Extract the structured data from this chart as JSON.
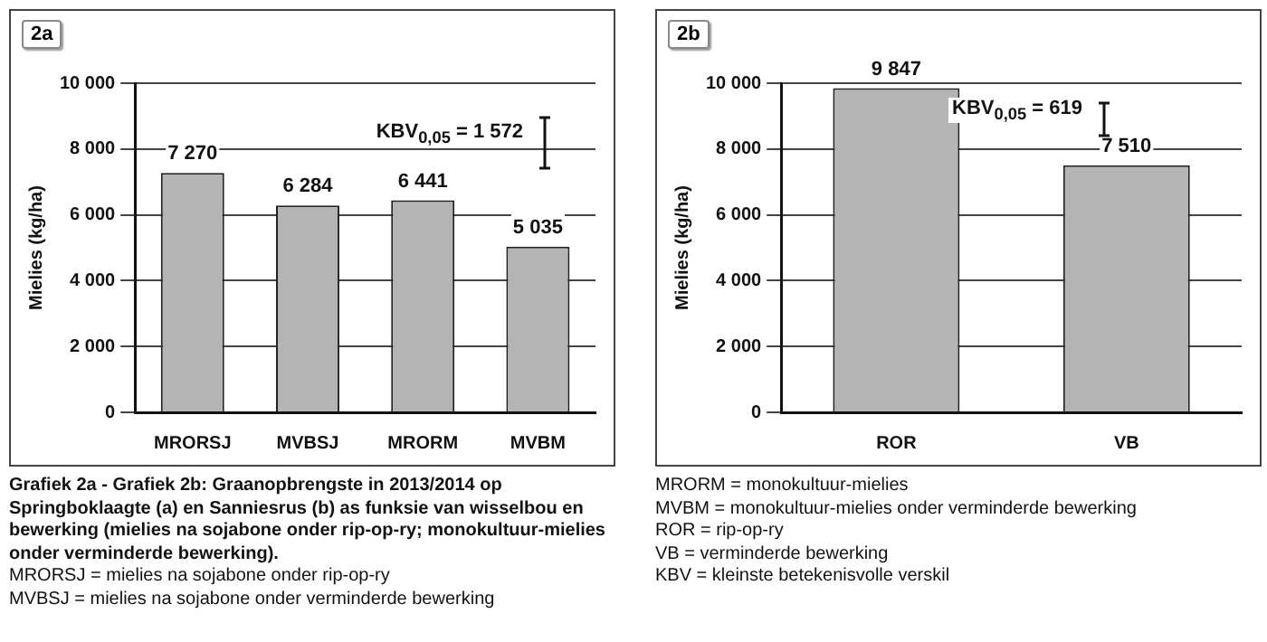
{
  "chart_data": [
    {
      "type": "bar",
      "title": "2a",
      "ylabel": "Mielies (kg/ha)",
      "categories": [
        "MRORSJ",
        "MVBSJ",
        "MRORM",
        "MVBM"
      ],
      "values": [
        7270,
        6284,
        6441,
        5035
      ],
      "value_labels": [
        "7 270",
        "6 284",
        "6 441",
        "5 035"
      ],
      "color": "#b4b4b4",
      "ylim": [
        0,
        10000
      ],
      "yticks": [
        {
          "value": 0,
          "label": "0"
        },
        {
          "value": 2000,
          "label": "2 000"
        },
        {
          "value": 4000,
          "label": "4 000"
        },
        {
          "value": 6000,
          "label": "6 000"
        },
        {
          "value": 8000,
          "label": "8 000"
        },
        {
          "value": 10000,
          "label": "10 000"
        }
      ],
      "grid": "y",
      "annotations": [
        "KBV$_{0,05}$ = 1 572",
        "Grafiek 2a - Grafiek 2b: Graanopbrengste in 2013/2014 op Springboklaagte (a) en Sanniesrus (b) as funksie van wisselbou en bewerking (mielies na sojabone onder rip-op-ry; monokultuur-mielies onder verminderde bewerking).",
        "MRORSJ = mielies na sojabone onder rip-op-ry",
        "MVBSJ = mielies na sojabone onder verminderde bewerking"
      ]
    },
    {
      "type": "bar",
      "title": "2b",
      "ylabel": "Mielies (kg/ha)",
      "categories": [
        "ROR",
        "VB"
      ],
      "values": [
        9847,
        7510
      ],
      "value_labels": [
        "9 847",
        "7 510"
      ],
      "color": "#b4b4b4",
      "ylim": [
        0,
        10000
      ],
      "yticks": [
        {
          "value": 0,
          "label": "0"
        },
        {
          "value": 2000,
          "label": "2 000"
        },
        {
          "value": 4000,
          "label": "4 000"
        },
        {
          "value": 6000,
          "label": "6 000"
        },
        {
          "value": 8000,
          "label": "8 000"
        },
        {
          "value": 10000,
          "label": "10 000"
        }
      ],
      "grid": "y",
      "annotations": [
        "KBV$_{0,05}$ = 619",
        "MRORM = monokultuur-mielies",
        "MVBM = monokultuur-mielies onder verminderde bewerking",
        "ROR = rip-op-ry",
        "VB = verminderde bewerking",
        "KBV = kleinste betekenisvolle verskil"
      ]
    }
  ]
}
